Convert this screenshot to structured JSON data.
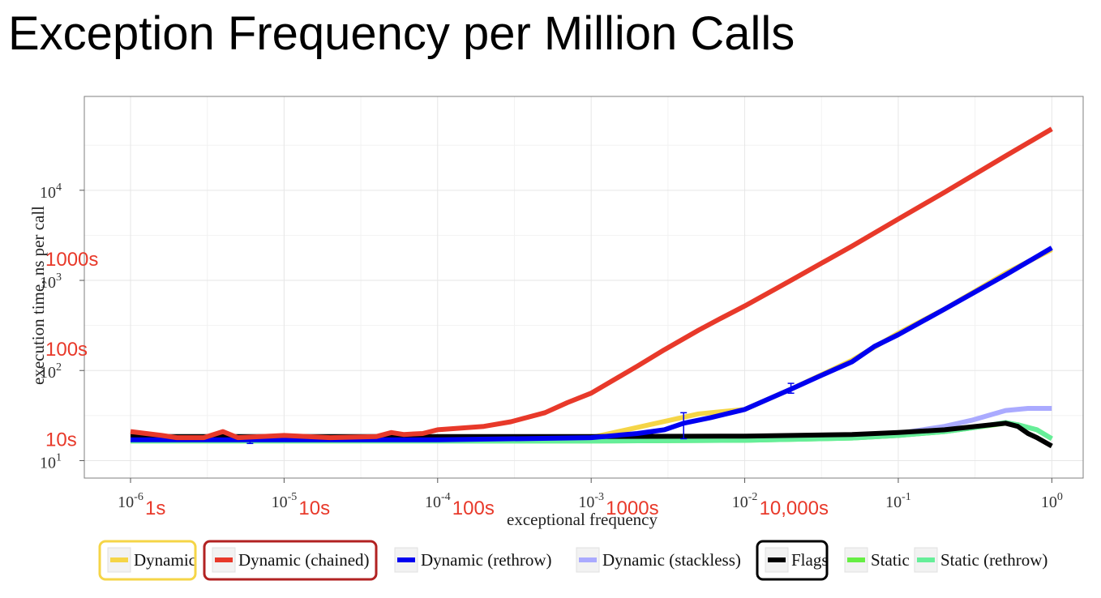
{
  "title": "Exception Frequency per Million Calls",
  "chart_data": {
    "type": "line",
    "title": "Exception Frequency per Million Calls",
    "xlabel": "exceptional frequency",
    "ylabel": "execution time, ns per call",
    "x_scale": "log",
    "y_scale": "log",
    "xlim": [
      5e-07,
      1.6
    ],
    "ylim": [
      6.4,
      110000
    ],
    "grid": true,
    "legend_position": "bottom",
    "x_ticks": [
      {
        "value": 1e-06,
        "base": "10",
        "exp": "-6"
      },
      {
        "value": 1e-05,
        "base": "10",
        "exp": "-5"
      },
      {
        "value": 0.0001,
        "base": "10",
        "exp": "-4"
      },
      {
        "value": 0.001,
        "base": "10",
        "exp": "-3"
      },
      {
        "value": 0.01,
        "base": "10",
        "exp": "-2"
      },
      {
        "value": 0.1,
        "base": "10",
        "exp": "-1"
      },
      {
        "value": 1,
        "base": "10",
        "exp": "0"
      }
    ],
    "y_ticks": [
      {
        "value": 10,
        "base": "10",
        "exp": "1"
      },
      {
        "value": 100,
        "base": "10",
        "exp": "2"
      },
      {
        "value": 1000,
        "base": "10",
        "exp": "3"
      },
      {
        "value": 10000,
        "base": "10",
        "exp": "4"
      }
    ],
    "annotations": {
      "color": "#e8392a",
      "x_axis": [
        {
          "text": "1s",
          "x": 1e-06
        },
        {
          "text": "10s",
          "x": 1e-05
        },
        {
          "text": "100s",
          "x": 0.0001
        },
        {
          "text": "1000s",
          "x": 0.001
        },
        {
          "text": "10,000s",
          "x": 0.01
        }
      ],
      "y_axis": [
        {
          "text": "1000s",
          "y": 1000
        },
        {
          "text": "100s",
          "y": 100
        },
        {
          "text": "10s",
          "y": 10
        }
      ]
    },
    "series": [
      {
        "name": "Dynamic",
        "color": "#f5d547",
        "legend_highlight": "#f5d547",
        "x": [
          1e-06,
          1e-05,
          0.0001,
          0.001,
          0.005,
          0.01,
          0.02,
          0.05,
          0.1,
          0.2,
          0.5,
          1.0
        ],
        "y": [
          17,
          17,
          17,
          18,
          33,
          37,
          62,
          130,
          260,
          480,
          1200,
          2200
        ]
      },
      {
        "name": "Dynamic (chained)",
        "color": "#e8392a",
        "legend_highlight": "#b22222",
        "x": [
          1e-06,
          1.6e-06,
          2e-06,
          3e-06,
          4e-06,
          5e-06,
          1e-05,
          2e-05,
          4e-05,
          5e-05,
          6e-05,
          8e-05,
          0.0001,
          0.0002,
          0.0003,
          0.0005,
          0.0007,
          0.001,
          0.002,
          0.003,
          0.005,
          0.007,
          0.01,
          0.02,
          0.05,
          0.1,
          0.2,
          0.5,
          1.0
        ],
        "y": [
          21,
          19,
          18,
          18,
          21,
          18,
          19,
          18,
          18.5,
          20.5,
          19.5,
          20,
          22,
          24,
          27,
          34,
          44,
          56,
          112,
          170,
          280,
          380,
          520,
          1000,
          2400,
          4800,
          9500,
          24000,
          48000
        ]
      },
      {
        "name": "Dynamic (rethrow)",
        "color": "#0000f0",
        "x": [
          1e-06,
          1e-05,
          0.0001,
          0.001,
          0.002,
          0.003,
          0.004,
          0.006,
          0.01,
          0.02,
          0.03,
          0.05,
          0.07,
          0.1,
          0.2,
          0.5,
          1.0
        ],
        "y": [
          17,
          17,
          17,
          18,
          20,
          22,
          26,
          30,
          37,
          62,
          85,
          125,
          185,
          250,
          480,
          1150,
          2300
        ],
        "error_bars": [
          {
            "x": 6e-06,
            "low": 15.5,
            "high": 17.5
          },
          {
            "x": 0.004,
            "low": 17.5,
            "high": 34
          },
          {
            "x": 0.02,
            "low": 56,
            "high": 72
          }
        ]
      },
      {
        "name": "Dynamic (stackless)",
        "color": "#aaaaff",
        "x": [
          1e-06,
          0.001,
          0.01,
          0.05,
          0.1,
          0.2,
          0.3,
          0.5,
          0.7,
          1.0
        ],
        "y": [
          17,
          17,
          17,
          18,
          20,
          24,
          28,
          36,
          38,
          38
        ]
      },
      {
        "name": "Flags",
        "color": "#000000",
        "legend_highlight": "#000000",
        "x": [
          1e-06,
          0.0001,
          0.001,
          0.01,
          0.05,
          0.1,
          0.2,
          0.5,
          0.6,
          0.7,
          0.8,
          1.0
        ],
        "y": [
          18.5,
          18.5,
          18.5,
          18.7,
          19.5,
          20.5,
          22,
          26,
          24,
          20,
          18,
          14.5
        ]
      },
      {
        "name": "Static",
        "color": "#66ee44",
        "x": [
          1e-06,
          0.001,
          0.01,
          0.05,
          0.1,
          0.2,
          0.3,
          0.5,
          0.6,
          0.8,
          1.0
        ],
        "y": [
          16.5,
          16.5,
          16.8,
          17.8,
          19,
          21,
          23,
          26,
          25,
          22,
          17.5
        ]
      },
      {
        "name": "Static (rethrow)",
        "color": "#66ee99",
        "x": [
          1e-06,
          0.001,
          0.01,
          0.05,
          0.1,
          0.2,
          0.3,
          0.5,
          0.6,
          0.8,
          1.0
        ],
        "y": [
          16.5,
          16.5,
          16.8,
          17.8,
          19,
          21,
          23,
          26.5,
          25,
          22,
          17.5
        ]
      }
    ]
  }
}
